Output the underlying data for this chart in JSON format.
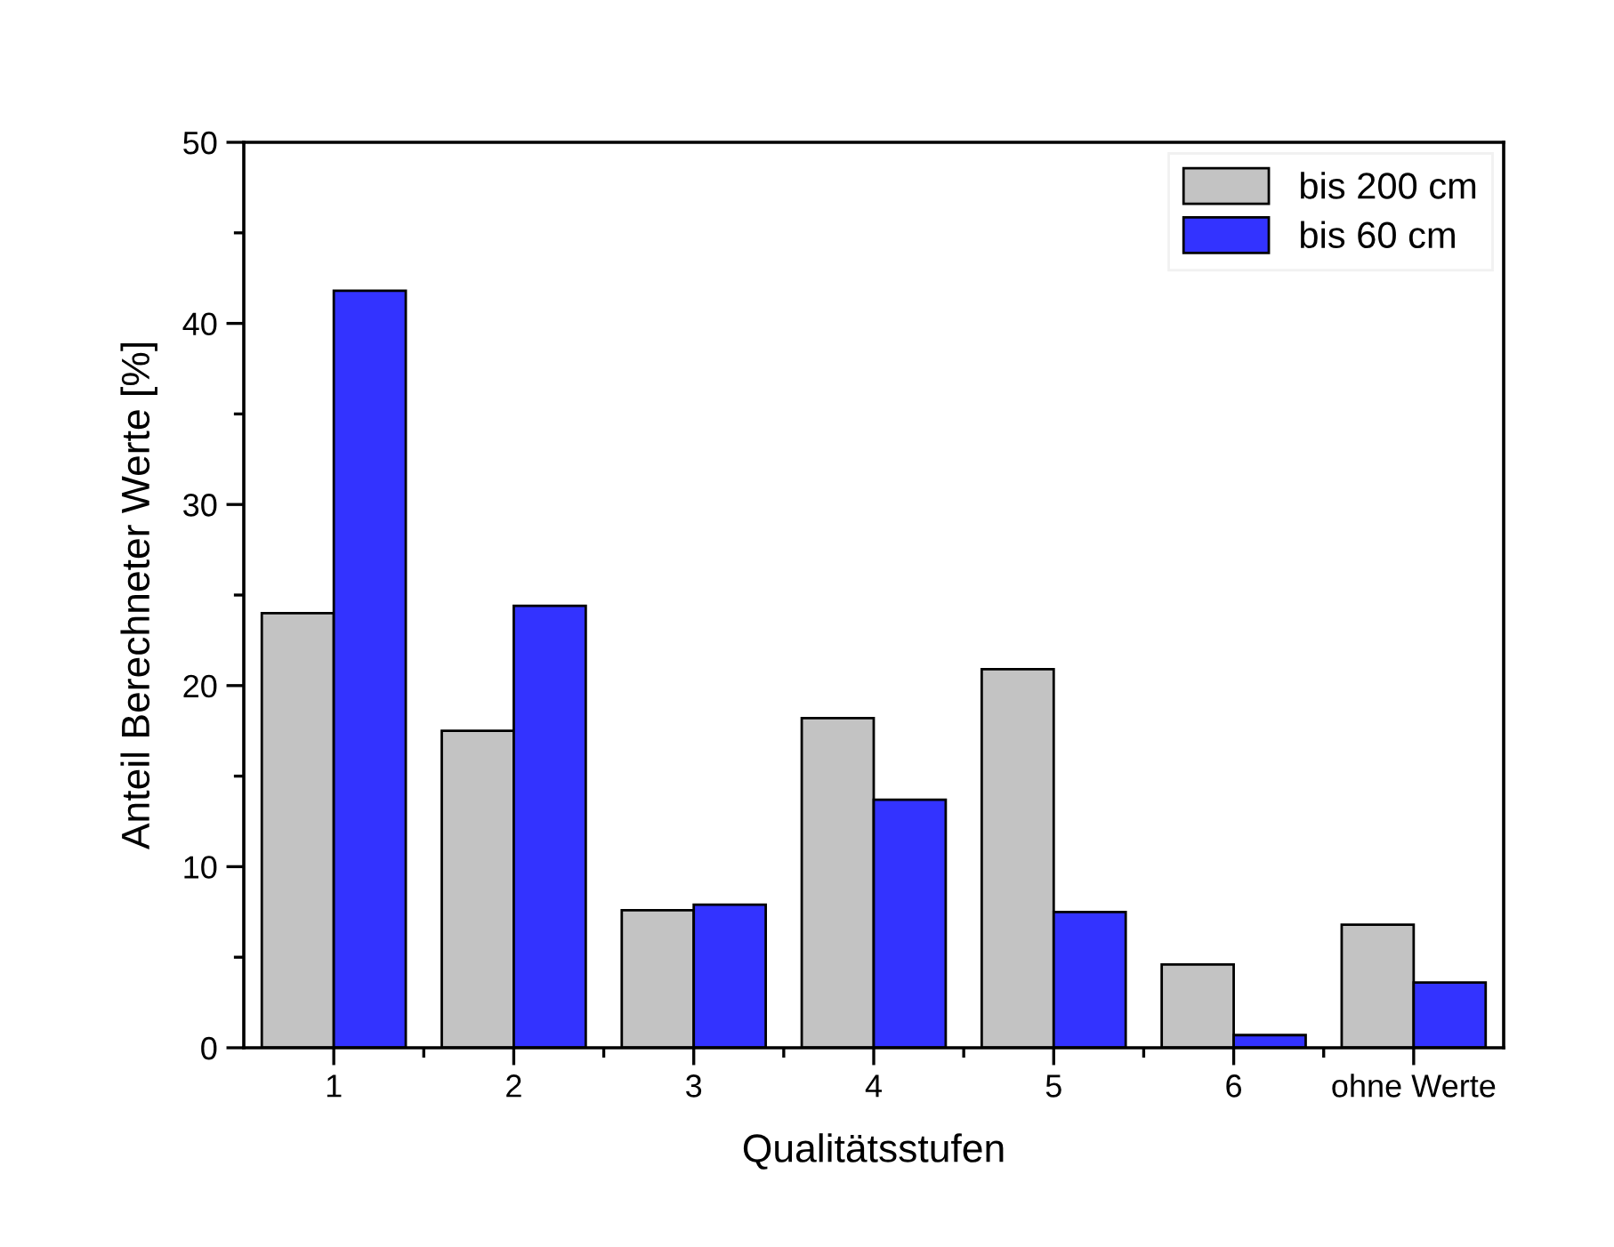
{
  "chart_data": {
    "type": "bar",
    "xlabel": "Qualitätsstufen",
    "ylabel": "Anteil Berechneter Werte [%]",
    "categories": [
      "1",
      "2",
      "3",
      "4",
      "5",
      "6",
      "ohne Werte"
    ],
    "series": [
      {
        "name": "bis 200 cm",
        "color": "#c3c3c3",
        "values": [
          24.0,
          17.5,
          7.6,
          18.2,
          20.9,
          4.6,
          6.8
        ]
      },
      {
        "name": "bis 60 cm",
        "color": "#3333ff",
        "values": [
          41.8,
          24.4,
          7.9,
          13.7,
          7.5,
          0.7,
          3.6
        ]
      }
    ],
    "ylim": [
      0,
      50
    ],
    "yticks": [
      0,
      10,
      20,
      30,
      40,
      50
    ],
    "grid": false,
    "legend": "top right"
  }
}
